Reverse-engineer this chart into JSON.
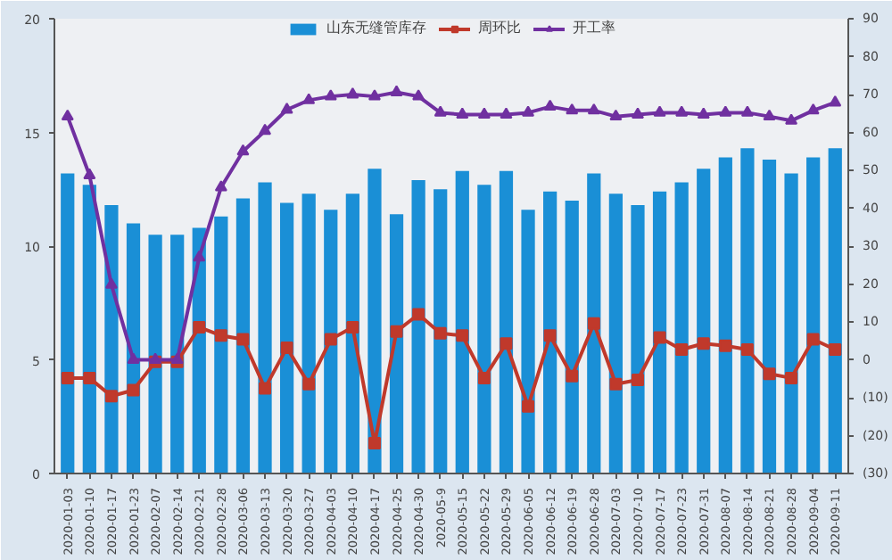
{
  "chart_data": {
    "type": "bar",
    "categories": [
      "2020-01-03",
      "2020-01-10",
      "2020-01-17",
      "2020-01-23",
      "2020-02-07",
      "2020-02-14",
      "2020-02-21",
      "2020-02-28",
      "2020-03-06",
      "2020-03-13",
      "2020-03-20",
      "2020-03-27",
      "2020-04-03",
      "2020-04-10",
      "2020-04-17",
      "2020-04-25",
      "2020-04-30",
      "2020-05-9",
      "2020-05-15",
      "2020-05-22",
      "2020-05-29",
      "2020-06-05",
      "2020-06-12",
      "2020-06-19",
      "2020-06-28",
      "2020-07-03",
      "2020-07-10",
      "2020-07-17",
      "2020-07-23",
      "2020-07-31",
      "2020-08-07",
      "2020-08-14",
      "2020-08-21",
      "2020-08-28",
      "2020-09-04",
      "2020-09-11"
    ],
    "series": [
      {
        "name": "山东无缝管库存",
        "color": "#1a8fd6",
        "values": [
          13.2,
          12.7,
          11.8,
          11.0,
          10.5,
          10.5,
          10.8,
          11.3,
          12.1,
          12.8,
          11.9,
          12.3,
          11.6,
          12.3,
          13.4,
          11.4,
          12.9,
          12.5,
          13.3,
          12.7,
          13.3,
          11.6,
          12.4,
          12.0,
          13.2,
          12.3,
          11.8,
          12.4,
          12.8,
          13.4,
          13.9,
          14.3,
          13.8,
          13.2,
          13.9,
          14.3
        ]
      },
      {
        "name": "周环比",
        "type": "line",
        "axis": "y2",
        "color": "#c0392b",
        "marker": "square",
        "values": [
          -4.8,
          -4.8,
          -9.6,
          -8,
          -0.5,
          -0.5,
          8.6,
          6.4,
          5.4,
          -7.5,
          3.2,
          -6.4,
          5.4,
          8.6,
          -22,
          7.5,
          12,
          7,
          6.4,
          -4.8,
          4.3,
          -12.3,
          6.4,
          -4.3,
          9.6,
          -6.4,
          -5.3,
          5.9,
          2.7,
          4.3,
          3.7,
          2.7,
          -3.7,
          -4.8,
          5.4,
          2.7
        ]
      },
      {
        "name": "开工率",
        "type": "line",
        "axis": "y2",
        "color": "#7030a0",
        "marker": "triangle",
        "values": [
          64.2,
          48.7,
          19.8,
          0,
          0,
          0,
          27,
          45.5,
          55,
          60.4,
          66,
          68.5,
          69.5,
          70,
          69.5,
          70.6,
          69.5,
          65.2,
          64.7,
          64.7,
          64.7,
          65.2,
          66.8,
          65.8,
          65.8,
          64.2,
          64.7,
          65.2,
          65.2,
          64.7,
          65.2,
          65.2,
          64.2,
          63.1,
          65.8,
          67.9
        ]
      }
    ],
    "ylim": [
      0,
      20
    ],
    "yticks": [
      0,
      5,
      10,
      15,
      20
    ],
    "y2lim": [
      -30,
      90
    ],
    "y2ticks": [
      {
        "value": -30,
        "label": "(30)"
      },
      {
        "value": -20,
        "label": "(20)"
      },
      {
        "value": -10,
        "label": "(10)"
      },
      0,
      10,
      20,
      30,
      40,
      50,
      60,
      70,
      80,
      90
    ],
    "legend": "top",
    "grid": false
  }
}
